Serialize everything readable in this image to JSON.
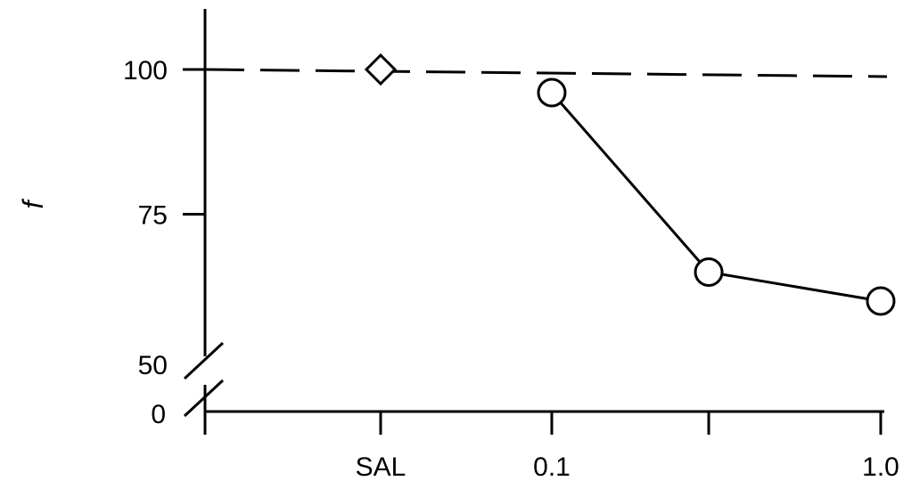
{
  "chart_data": {
    "type": "line",
    "ylabel": "f",
    "y_ticks": [
      {
        "value": 100,
        "label": "100"
      },
      {
        "value": 75,
        "label": "75"
      },
      {
        "value": 50,
        "label": "50"
      },
      {
        "value": 0,
        "label": "0"
      }
    ],
    "x_ticks": [
      {
        "pos": "SAL",
        "label": "SAL"
      },
      {
        "pos": 0.1,
        "label": "0.1"
      },
      {
        "pos": 0.3,
        "label": ""
      },
      {
        "pos": 1.0,
        "label": "1.0"
      }
    ],
    "y_axis_break": [
      0,
      50
    ],
    "x_scale": "log",
    "reference_line": {
      "y": 100,
      "style": "dashed"
    },
    "series": [
      {
        "marker": "diamond",
        "points": [
          {
            "x": "SAL",
            "y": 100
          }
        ]
      },
      {
        "marker": "circle",
        "connected": true,
        "points": [
          {
            "x": 0.1,
            "y": 96
          },
          {
            "x": 0.3,
            "y": 65
          },
          {
            "x": 1.0,
            "y": 60
          }
        ]
      }
    ]
  }
}
